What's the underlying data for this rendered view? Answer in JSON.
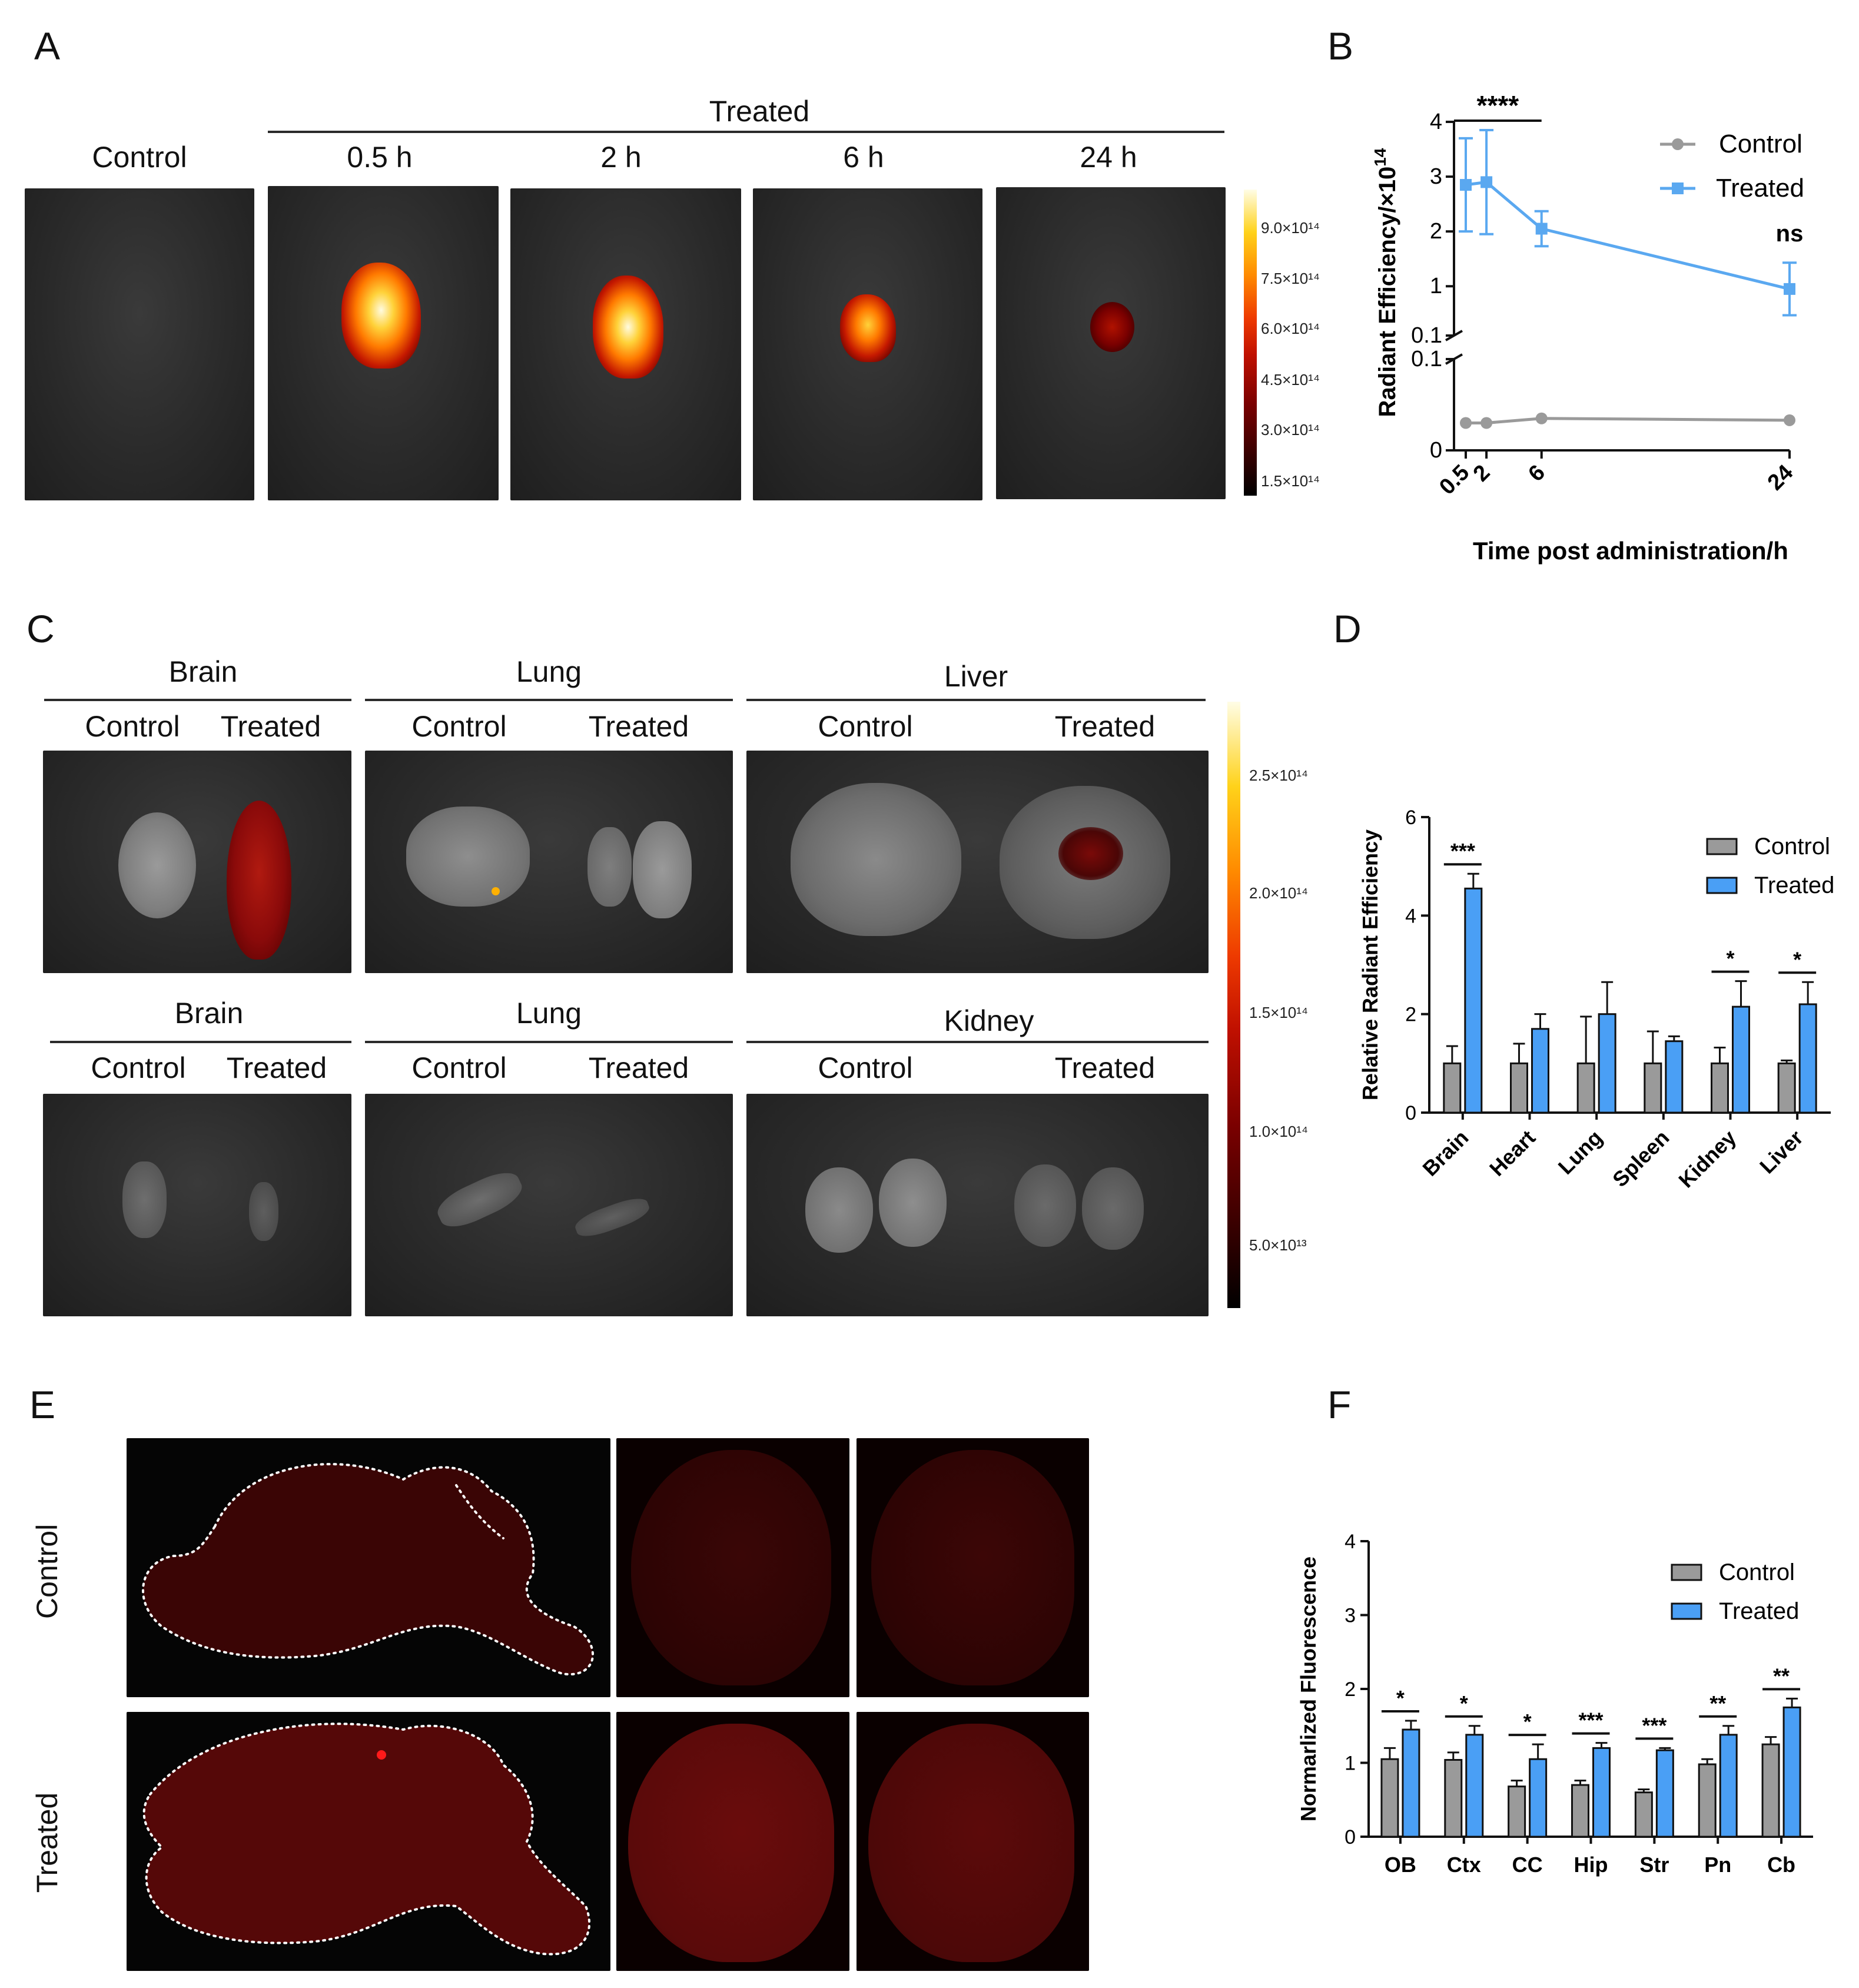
{
  "panels": {
    "A": "A",
    "B": "B",
    "C": "C",
    "D": "D",
    "E": "E",
    "F": "F"
  },
  "panelA": {
    "treated_label": "Treated",
    "columns": [
      "Control",
      "0.5 h",
      "2 h",
      "6 h",
      "24 h"
    ],
    "colorbar_ticks": [
      "9.0×10¹⁴",
      "7.5×10¹⁴",
      "6.0×10¹⁴",
      "4.5×10¹⁴",
      "3.0×10¹⁴",
      "1.5×10¹⁴"
    ]
  },
  "panelC": {
    "row1": [
      {
        "organ": "Brain",
        "control": "Control",
        "treated": "Treated"
      },
      {
        "organ": "Lung",
        "control": "Control",
        "treated": "Treated"
      },
      {
        "organ": "Liver",
        "control": "Control",
        "treated": "Treated"
      }
    ],
    "row2": [
      {
        "organ": "Brain",
        "control": "Control",
        "treated": "Treated"
      },
      {
        "organ": "Lung",
        "control": "Control",
        "treated": "Treated"
      },
      {
        "organ": "Kidney",
        "control": "Control",
        "treated": "Treated"
      }
    ],
    "colorbar_ticks": [
      "2.5×10¹⁴",
      "2.0×10¹⁴",
      "1.5×10¹⁴",
      "1.0×10¹⁴",
      "5.0×10¹³"
    ]
  },
  "panelE": {
    "row_labels": [
      "Control",
      "Treated"
    ]
  },
  "colors": {
    "control": "#9a9a9a",
    "treated": "#4a9ff5",
    "treated_line": "#5aa8f0"
  },
  "chart_data": [
    {
      "id": "B",
      "type": "line",
      "xlabel": "Time post administration/h",
      "ylabel": "Radiant Efficiency/×10",
      "ylabel_exp": "14",
      "x": [
        0.5,
        2,
        6,
        24
      ],
      "x_tick_labels": [
        "0.5",
        "2",
        "6",
        "24"
      ],
      "y_ticks_upper": [
        "4",
        "3",
        "2",
        "1",
        "0.1"
      ],
      "y_ticks_lower": [
        "0.1",
        "0"
      ],
      "series": [
        {
          "name": "Control",
          "values": [
            0.03,
            0.03,
            0.035,
            0.033
          ]
        },
        {
          "name": "Treated",
          "values": [
            2.85,
            2.9,
            2.05,
            0.95
          ],
          "errors": [
            0.85,
            0.95,
            0.32,
            0.48
          ]
        }
      ],
      "annotations": [
        {
          "text": "****"
        },
        {
          "text": "ns"
        }
      ],
      "legend": "top-right"
    },
    {
      "id": "D",
      "type": "bar",
      "ylabel": "Relative Radiant Efficiency",
      "categories": [
        "Brain",
        "Heart",
        "Lung",
        "Spleen",
        "Kidney",
        "Liver"
      ],
      "ylim": [
        0,
        6
      ],
      "y_ticks": [
        "0",
        "2",
        "4",
        "6"
      ],
      "series": [
        {
          "name": "Control",
          "values": [
            1.0,
            1.0,
            1.0,
            1.0,
            1.0,
            1.0
          ],
          "errors": [
            0.35,
            0.4,
            0.95,
            0.65,
            0.32,
            0.06
          ]
        },
        {
          "name": "Treated",
          "values": [
            4.55,
            1.7,
            2.0,
            1.45,
            2.15,
            2.2
          ],
          "errors": [
            0.3,
            0.3,
            0.65,
            0.1,
            0.52,
            0.45
          ]
        }
      ],
      "significance": [
        "***",
        "",
        "",
        "",
        "*",
        "*"
      ],
      "legend": "top-right"
    },
    {
      "id": "F",
      "type": "bar",
      "ylabel": "Normarlized Fluorescence",
      "categories": [
        "OB",
        "Ctx",
        "CC",
        "Hip",
        "Str",
        "Pn",
        "Cb"
      ],
      "ylim": [
        0,
        4
      ],
      "y_ticks": [
        "0",
        "1",
        "2",
        "3",
        "4"
      ],
      "series": [
        {
          "name": "Control",
          "values": [
            1.05,
            1.04,
            0.68,
            0.7,
            0.6,
            0.98,
            1.25
          ],
          "errors": [
            0.15,
            0.1,
            0.08,
            0.06,
            0.04,
            0.07,
            0.1
          ]
        },
        {
          "name": "Treated",
          "values": [
            1.45,
            1.38,
            1.05,
            1.2,
            1.17,
            1.38,
            1.75
          ],
          "errors": [
            0.12,
            0.12,
            0.2,
            0.07,
            0.03,
            0.12,
            0.12
          ]
        }
      ],
      "significance": [
        "*",
        "*",
        "*",
        "***",
        "***",
        "**",
        "**"
      ],
      "legend": "top-right"
    }
  ]
}
